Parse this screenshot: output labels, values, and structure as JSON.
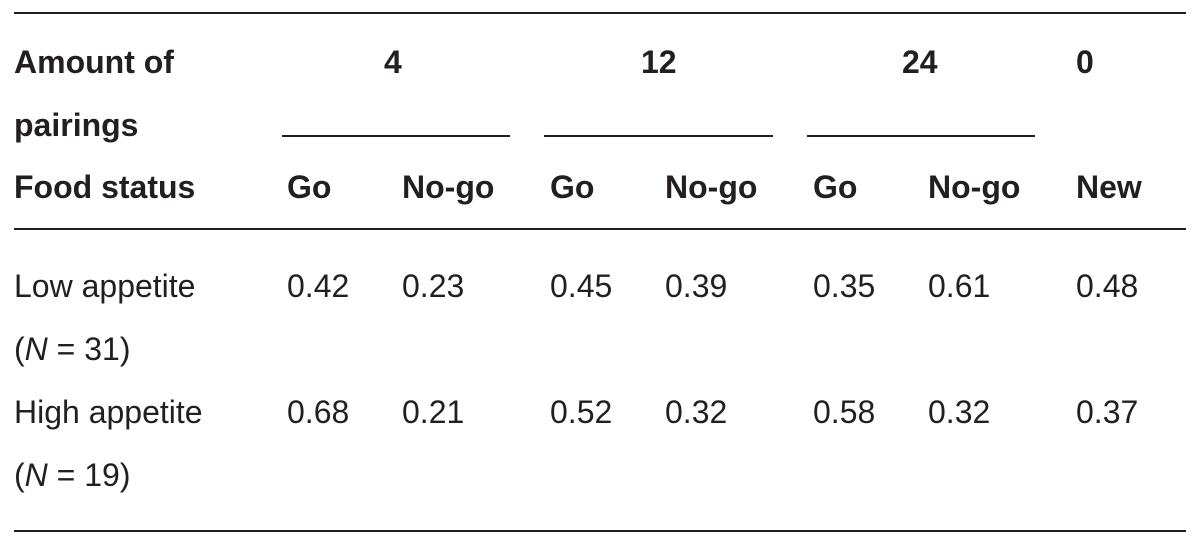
{
  "header": {
    "pairings_label_line1": "Amount of",
    "pairings_label_line2": "pairings",
    "status_label": "Food status",
    "groups": [
      "4",
      "12",
      "24",
      "0"
    ],
    "columns": [
      "Go",
      "No-go",
      "Go",
      "No-go",
      "Go",
      "No-go",
      "New"
    ]
  },
  "rows": [
    {
      "label": "Low appetite",
      "n_open": "(",
      "n_symbol": "N",
      "n_rest": " = 31)",
      "values": [
        "0.42",
        "0.23",
        "0.45",
        "0.39",
        "0.35",
        "0.61",
        "0.48"
      ]
    },
    {
      "label": "High appetite",
      "n_open": "(",
      "n_symbol": "N",
      "n_rest": " = 19)",
      "values": [
        "0.68",
        "0.21",
        "0.52",
        "0.32",
        "0.58",
        "0.32",
        "0.37"
      ]
    }
  ]
}
